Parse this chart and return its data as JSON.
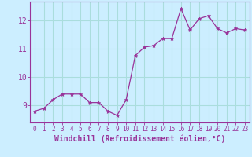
{
  "x": [
    0,
    1,
    2,
    3,
    4,
    5,
    6,
    7,
    8,
    9,
    10,
    11,
    12,
    13,
    14,
    15,
    16,
    17,
    18,
    19,
    20,
    21,
    22,
    23
  ],
  "y": [
    8.8,
    8.9,
    9.2,
    9.4,
    9.4,
    9.4,
    9.1,
    9.1,
    8.8,
    8.65,
    9.2,
    10.75,
    11.05,
    11.1,
    11.35,
    11.35,
    12.4,
    11.65,
    12.05,
    12.15,
    11.7,
    11.55,
    11.7,
    11.65
  ],
  "line_color": "#993399",
  "marker": "*",
  "marker_size": 3.5,
  "bg_color": "#cceeff",
  "grid_color": "#aadddd",
  "tick_color": "#993399",
  "label_color": "#993399",
  "xlabel": "Windchill (Refroidissement éolien,°C)",
  "ylabel_ticks": [
    9,
    10,
    11,
    12
  ],
  "xlim": [
    -0.5,
    23.5
  ],
  "ylim": [
    8.4,
    12.65
  ],
  "font_size_x": 5.5,
  "font_size_y": 7.0,
  "font_size_xlabel": 7.0
}
